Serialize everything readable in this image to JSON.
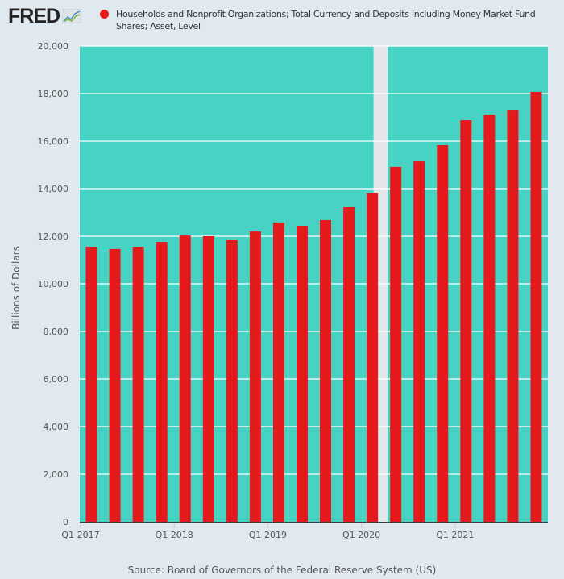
{
  "logo": {
    "text": "FRED"
  },
  "legend": {
    "label": "Households and Nonprofit Organizations; Total Currency and Deposits Including Money Market Fund Shares; Asset, Level",
    "color": "#e41a1c"
  },
  "source": "Source: Board of Governors of the Federal Reserve System (US)",
  "colors": {
    "plot_bg": "#47d3c4",
    "bar": "#e41a1c",
    "recession": "#e6e6ea",
    "page_bg": "#e1e9f0",
    "grid": "#ffffff"
  },
  "chart_data": {
    "type": "bar",
    "title": "",
    "xlabel": "",
    "ylabel": "Billions of Dollars",
    "ylim": [
      0,
      20000
    ],
    "yticks": [
      0,
      2000,
      4000,
      6000,
      8000,
      10000,
      12000,
      14000,
      16000,
      18000,
      20000
    ],
    "ytick_labels": [
      "0",
      "2,000",
      "4,000",
      "6,000",
      "8,000",
      "10,000",
      "12,000",
      "14,000",
      "16,000",
      "18,000",
      "20,000"
    ],
    "grid": true,
    "legend_position": "top",
    "categories": [
      "Q1 2017",
      "Q2 2017",
      "Q3 2017",
      "Q4 2017",
      "Q1 2018",
      "Q2 2018",
      "Q3 2018",
      "Q4 2018",
      "Q1 2019",
      "Q2 2019",
      "Q3 2019",
      "Q4 2019",
      "Q1 2020",
      "Q2 2020",
      "Q3 2020",
      "Q4 2020",
      "Q1 2021",
      "Q2 2021",
      "Q3 2021",
      "Q4 2021"
    ],
    "xtick_labels": [
      {
        "index": 0,
        "label": "Q1 2017"
      },
      {
        "index": 4,
        "label": "Q1 2018"
      },
      {
        "index": 8,
        "label": "Q1 2019"
      },
      {
        "index": 12,
        "label": "Q1 2020"
      },
      {
        "index": 16,
        "label": "Q1 2021"
      }
    ],
    "series": [
      {
        "name": "Households and Nonprofit Organizations; Total Currency and Deposits Including Money Market Fund Shares; Asset, Level",
        "values": [
          11560,
          11460,
          11560,
          11760,
          12030,
          12000,
          11860,
          12200,
          12580,
          12440,
          12680,
          13220,
          13830,
          14920,
          15150,
          15830,
          16880,
          17120,
          17320,
          18070
        ]
      }
    ],
    "recession_shading": {
      "start": "Q1 2020",
      "end": "Q2 2020",
      "start_index": 12.55,
      "end_index": 13.15
    }
  }
}
